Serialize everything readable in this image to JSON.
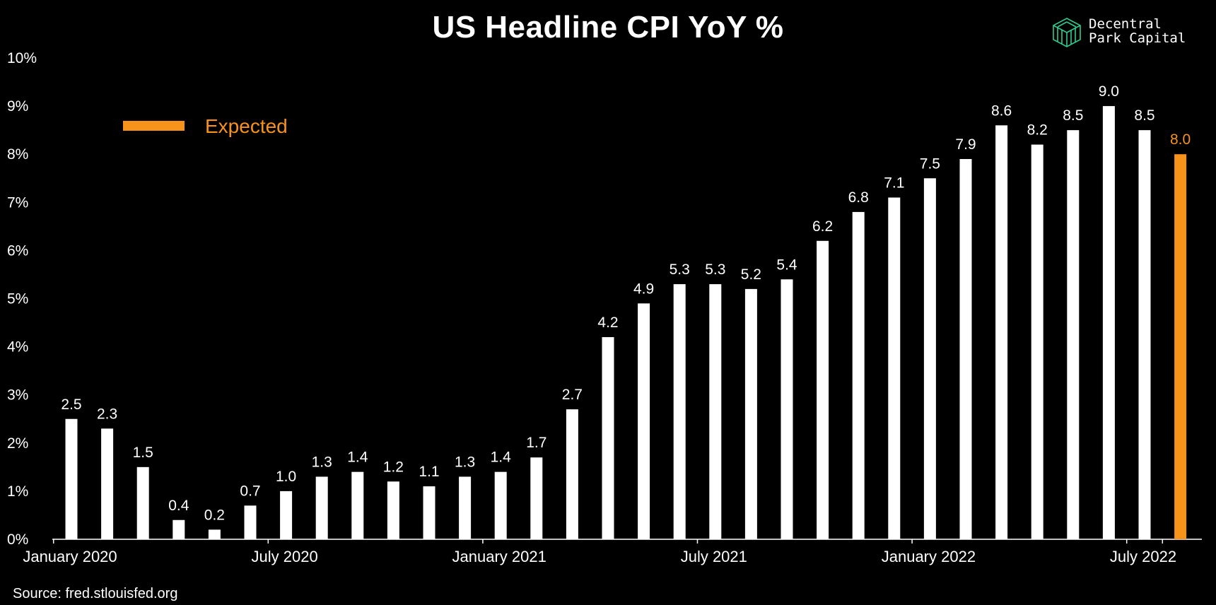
{
  "title": "US Headline CPI YoY %",
  "logo": {
    "line1": "Decentral",
    "line2": "Park Capital",
    "icon": "cube-logo-icon"
  },
  "source": "Source: fred.stlouisfed.org",
  "colors": {
    "background": "#000000",
    "bar": "#ffffff",
    "expected": "#f7931a",
    "logo": "#2ecc8f"
  },
  "chart_data": {
    "type": "bar",
    "title": "US Headline CPI YoY %",
    "xlabel": "",
    "ylabel": "",
    "ylim": [
      0,
      10
    ],
    "y_ticks": [
      "0%",
      "1%",
      "2%",
      "3%",
      "4%",
      "5%",
      "6%",
      "7%",
      "8%",
      "9%",
      "10%"
    ],
    "x_tick_labels": [
      {
        "label": "January 2020",
        "index": 0
      },
      {
        "label": "July 2020",
        "index": 6
      },
      {
        "label": "January 2021",
        "index": 12
      },
      {
        "label": "July 2021",
        "index": 18
      },
      {
        "label": "January 2022",
        "index": 24
      },
      {
        "label": "July 2022",
        "index": 30
      }
    ],
    "categories": [
      "2020-01",
      "2020-02",
      "2020-03",
      "2020-04",
      "2020-05",
      "2020-06",
      "2020-07",
      "2020-08",
      "2020-09",
      "2020-10",
      "2020-11",
      "2020-12",
      "2021-01",
      "2021-02",
      "2021-03",
      "2021-04",
      "2021-05",
      "2021-06",
      "2021-07",
      "2021-08",
      "2021-09",
      "2021-10",
      "2021-11",
      "2021-12",
      "2022-01",
      "2022-02",
      "2022-03",
      "2022-04",
      "2022-05",
      "2022-06",
      "2022-07"
    ],
    "values": [
      2.5,
      2.3,
      1.5,
      0.4,
      0.2,
      0.7,
      1.0,
      1.3,
      1.4,
      1.2,
      1.1,
      1.3,
      1.4,
      1.7,
      2.7,
      4.2,
      4.9,
      5.3,
      5.3,
      5.2,
      5.4,
      6.2,
      6.8,
      7.1,
      7.5,
      7.9,
      8.6,
      8.2,
      8.5,
      9.0,
      8.5
    ],
    "data_labels": [
      "2.5",
      "2.3",
      "1.5",
      "0.4",
      "0.2",
      "0.7",
      "1.0",
      "1.3",
      "1.4",
      "1.2",
      "1.1",
      "1.3",
      "1.4",
      "1.7",
      "2.7",
      "4.2",
      "4.9",
      "5.3",
      "5.3",
      "5.2",
      "5.4",
      "6.2",
      "6.8",
      "7.1",
      "7.5",
      "7.9",
      "8.6",
      "8.2",
      "8.5",
      "9.0",
      "8.5"
    ],
    "expected": {
      "label": "8.0",
      "value": 8.0,
      "category": "2022-08"
    },
    "legend": {
      "label": "Expected",
      "placement": "top-left"
    },
    "grid": false
  }
}
